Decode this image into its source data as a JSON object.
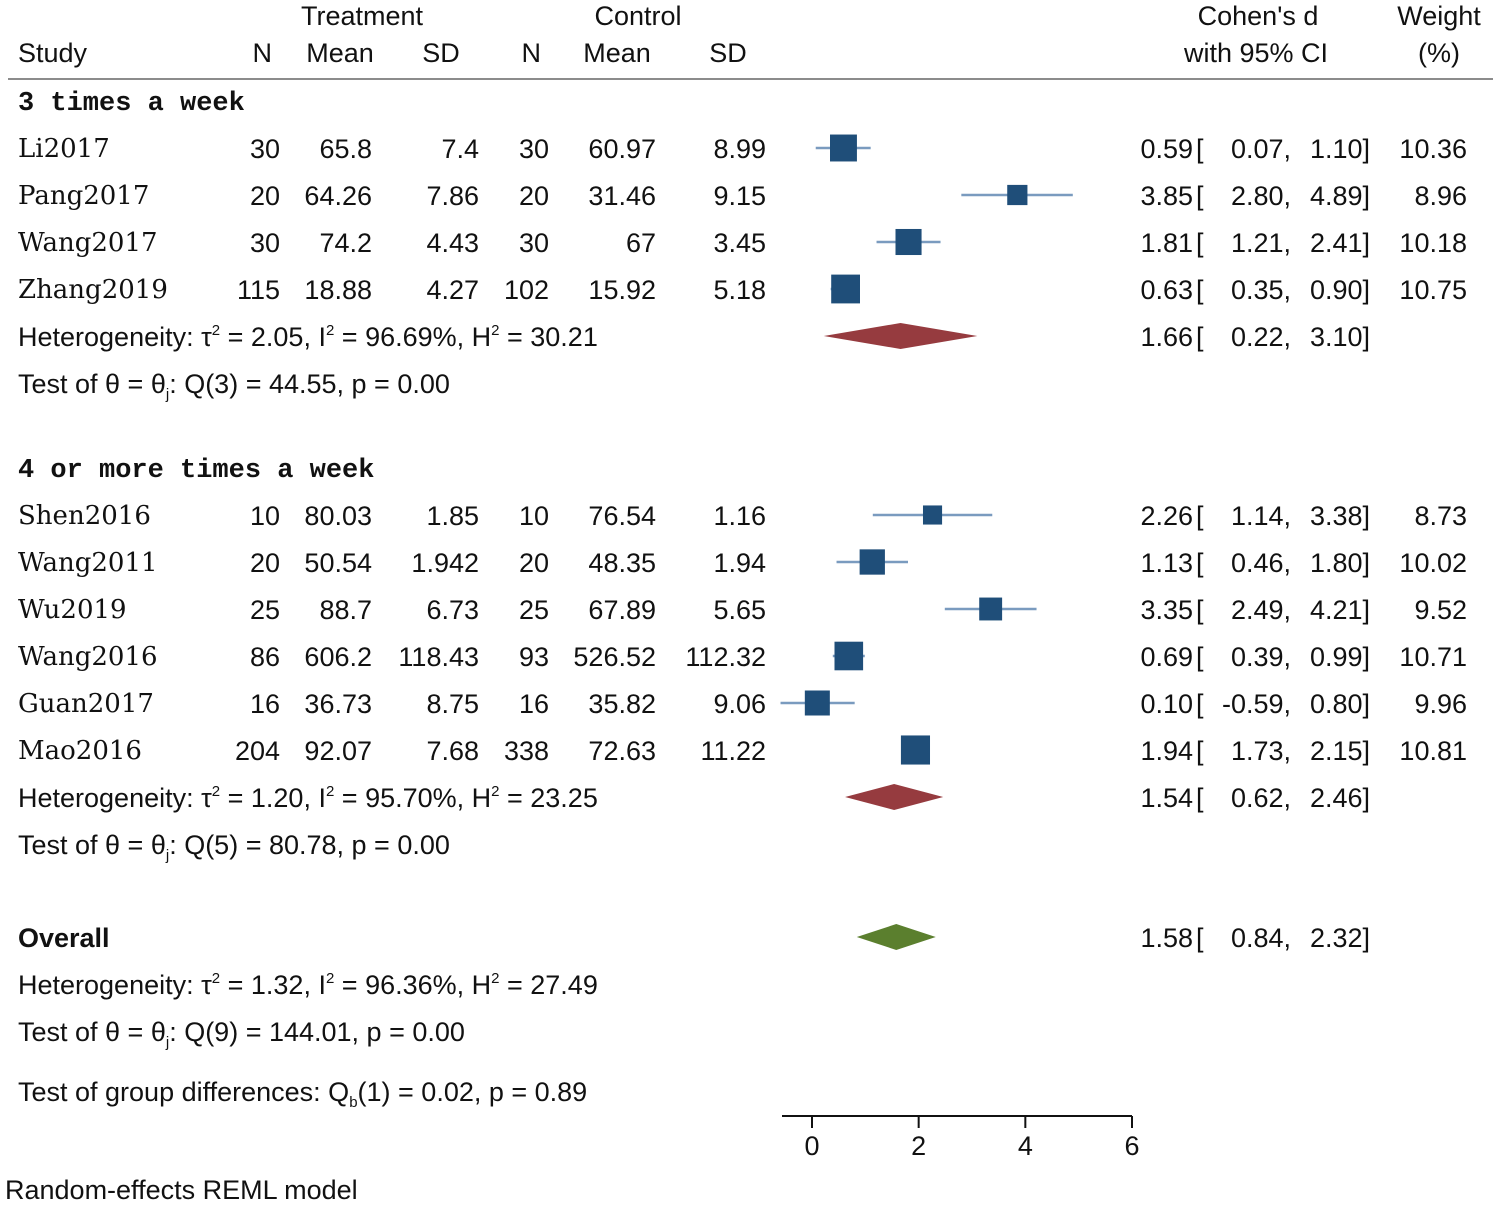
{
  "headers": {
    "treatment": "Treatment",
    "control": "Control",
    "study": "Study",
    "n": "N",
    "mean": "Mean",
    "sd": "SD",
    "effect_line1": "Cohen's d",
    "effect_line2": "with 95% CI",
    "weight_line1": "Weight",
    "weight_line2": "(%)"
  },
  "chart_data": {
    "type": "forest",
    "model_note": "Random-effects REML model",
    "xlim": [
      0,
      6
    ],
    "x_ticks": [
      0,
      2,
      4,
      6
    ],
    "colors": {
      "study_box": "#1f4e79",
      "ci_line": "#7a9bbf",
      "subgroup_diamond": "#963b3f",
      "overall_diamond": "#5b7f2e"
    },
    "groups": [
      {
        "name": "3 times a week",
        "studies": [
          {
            "study": "Li2017",
            "t_n": "30",
            "t_mean": "65.8",
            "t_sd": "7.4",
            "c_n": "30",
            "c_mean": "60.97",
            "c_sd": "8.99",
            "d": 0.59,
            "lo": 0.07,
            "hi": 1.1,
            "weight": "10.36",
            "ci_text": "0.59 [   0.07,  1.10]"
          },
          {
            "study": "Pang2017",
            "t_n": "20",
            "t_mean": "64.26",
            "t_sd": "7.86",
            "c_n": "20",
            "c_mean": "31.46",
            "c_sd": "9.15",
            "d": 3.85,
            "lo": 2.8,
            "hi": 4.89,
            "weight": "8.96",
            "ci_text": "3.85 [   2.80,  4.89]"
          },
          {
            "study": "Wang2017",
            "t_n": "30",
            "t_mean": "74.2",
            "t_sd": "4.43",
            "c_n": "30",
            "c_mean": "67",
            "c_sd": "3.45",
            "d": 1.81,
            "lo": 1.21,
            "hi": 2.41,
            "weight": "10.18",
            "ci_text": "1.81 [   1.21,  2.41]"
          },
          {
            "study": "Zhang2019",
            "t_n": "115",
            "t_mean": "18.88",
            "t_sd": "4.27",
            "c_n": "102",
            "c_mean": "15.92",
            "c_sd": "5.18",
            "d": 0.63,
            "lo": 0.35,
            "hi": 0.9,
            "weight": "10.75",
            "ci_text": "0.63 [   0.35,  0.90]"
          }
        ],
        "pooled": {
          "d": 1.66,
          "lo": 0.22,
          "hi": 3.1,
          "ci_text": "1.66 [   0.22,  3.10]"
        },
        "heterogeneity": {
          "prefix": "Heterogeneity: τ",
          "tau_mid": " = 2.05, I",
          "i_mid": " = 96.69%, H",
          "h_end": " = 30.21"
        },
        "test": {
          "prefix": "Test of θ = θ",
          "sub": "j",
          "suffix": ": Q(3) = 44.55, p = 0.00"
        }
      },
      {
        "name": "4 or more times a week",
        "studies": [
          {
            "study": "Shen2016",
            "t_n": "10",
            "t_mean": "80.03",
            "t_sd": "1.85",
            "c_n": "10",
            "c_mean": "76.54",
            "c_sd": "1.16",
            "d": 2.26,
            "lo": 1.14,
            "hi": 3.38,
            "weight": "8.73",
            "ci_text": "2.26 [   1.14,  3.38]"
          },
          {
            "study": "Wang2011",
            "t_n": "20",
            "t_mean": "50.54",
            "t_sd": "1.942",
            "c_n": "20",
            "c_mean": "48.35",
            "c_sd": "1.94",
            "d": 1.13,
            "lo": 0.46,
            "hi": 1.8,
            "weight": "10.02",
            "ci_text": "1.13 [   0.46,  1.80]"
          },
          {
            "study": "Wu2019",
            "t_n": "25",
            "t_mean": "88.7",
            "t_sd": "6.73",
            "c_n": "25",
            "c_mean": "67.89",
            "c_sd": "5.65",
            "d": 3.35,
            "lo": 2.49,
            "hi": 4.21,
            "weight": "9.52",
            "ci_text": "3.35 [   2.49,  4.21]"
          },
          {
            "study": "Wang2016",
            "t_n": "86",
            "t_mean": "606.2",
            "t_sd": "118.43",
            "c_n": "93",
            "c_mean": "526.52",
            "c_sd": "112.32",
            "d": 0.69,
            "lo": 0.39,
            "hi": 0.99,
            "weight": "10.71",
            "ci_text": "0.69 [   0.39,  0.99]"
          },
          {
            "study": "Guan2017",
            "t_n": "16",
            "t_mean": "36.73",
            "t_sd": "8.75",
            "c_n": "16",
            "c_mean": "35.82",
            "c_sd": "9.06",
            "d": 0.1,
            "lo": -0.59,
            "hi": 0.8,
            "weight": "9.96",
            "ci_text": "0.10 [  -0.59,  0.80]"
          },
          {
            "study": "Mao2016",
            "t_n": "204",
            "t_mean": "92.07",
            "t_sd": "7.68",
            "c_n": "338",
            "c_mean": "72.63",
            "c_sd": "11.22",
            "d": 1.94,
            "lo": 1.73,
            "hi": 2.15,
            "weight": "10.81",
            "ci_text": "1.94 [   1.73,  2.15]"
          }
        ],
        "pooled": {
          "d": 1.54,
          "lo": 0.62,
          "hi": 2.46,
          "ci_text": "1.54 [   0.62,  2.46]"
        },
        "heterogeneity": {
          "prefix": "Heterogeneity: τ",
          "tau_mid": " = 1.20, I",
          "i_mid": " = 95.70%, H",
          "h_end": " = 23.25"
        },
        "test": {
          "prefix": "Test of θ = θ",
          "sub": "j",
          "suffix": ": Q(5) = 80.78, p = 0.00"
        }
      }
    ],
    "overall": {
      "label": "Overall",
      "d": 1.58,
      "lo": 0.84,
      "hi": 2.32,
      "ci_text": "1.58 [   0.84,  2.32]",
      "heterogeneity": {
        "prefix": "Heterogeneity: τ",
        "tau_mid": " = 1.32, I",
        "i_mid": " = 96.36%, H",
        "h_end": " = 27.49"
      },
      "test": {
        "prefix": "Test of θ = θ",
        "sub": "j",
        "suffix": ": Q(9) = 144.01, p = 0.00"
      }
    },
    "group_test": {
      "prefix": "Test of group differences: Q",
      "sub": "b",
      "suffix": "(1) = 0.02, p = 0.89"
    },
    "superscript": "2"
  }
}
